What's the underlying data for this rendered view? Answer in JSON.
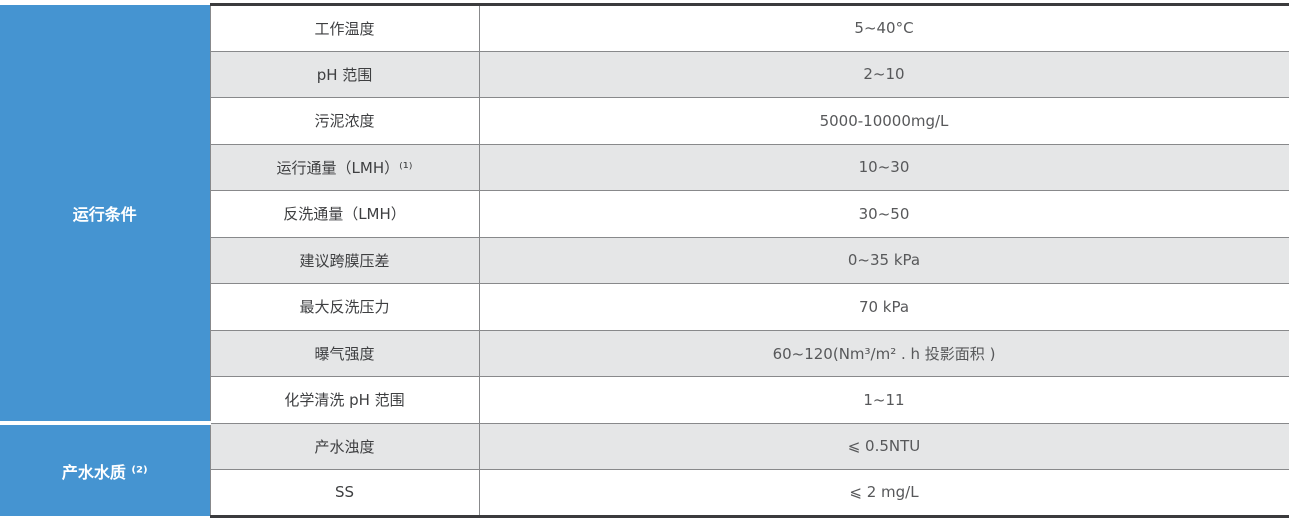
{
  "table": {
    "name": "membrane-specification-table",
    "sections": [
      {
        "label": "运行条件",
        "rowspan": 9
      },
      {
        "label": "产水水质 ⁽²⁾",
        "rowspan": 2
      }
    ],
    "rows": [
      {
        "param": "工作温度",
        "value": "5~40°C"
      },
      {
        "param": "pH 范围",
        "value": "2~10"
      },
      {
        "param": "污泥浓度",
        "value": "5000-10000mg/L"
      },
      {
        "param": "运行通量（LMH）⁽¹⁾",
        "value": "10~30"
      },
      {
        "param": "反洗通量（LMH）",
        "value": "30~50"
      },
      {
        "param": "建议跨膜压差",
        "value": "0~35 kPa"
      },
      {
        "param": "最大反洗压力",
        "value": "70 kPa"
      },
      {
        "param": "曝气强度",
        "value": "60~120(Nm³/m² . h 投影面积 )"
      },
      {
        "param": "化学清洗 pH 范围",
        "value": "1~11"
      },
      {
        "param": "产水浊度",
        "value": "⩽ 0.5NTU"
      },
      {
        "param": "SS",
        "value": "⩽ 2 mg/L"
      }
    ],
    "colors": {
      "section_blue": "#4594d1",
      "stripe_gray": "#e5e6e7",
      "grid_border": "#88898b",
      "outer_rule": "#3b3b3d",
      "param_text": "#3e3f41",
      "value_text": "#57585a",
      "section_text": "#ffffff"
    }
  }
}
